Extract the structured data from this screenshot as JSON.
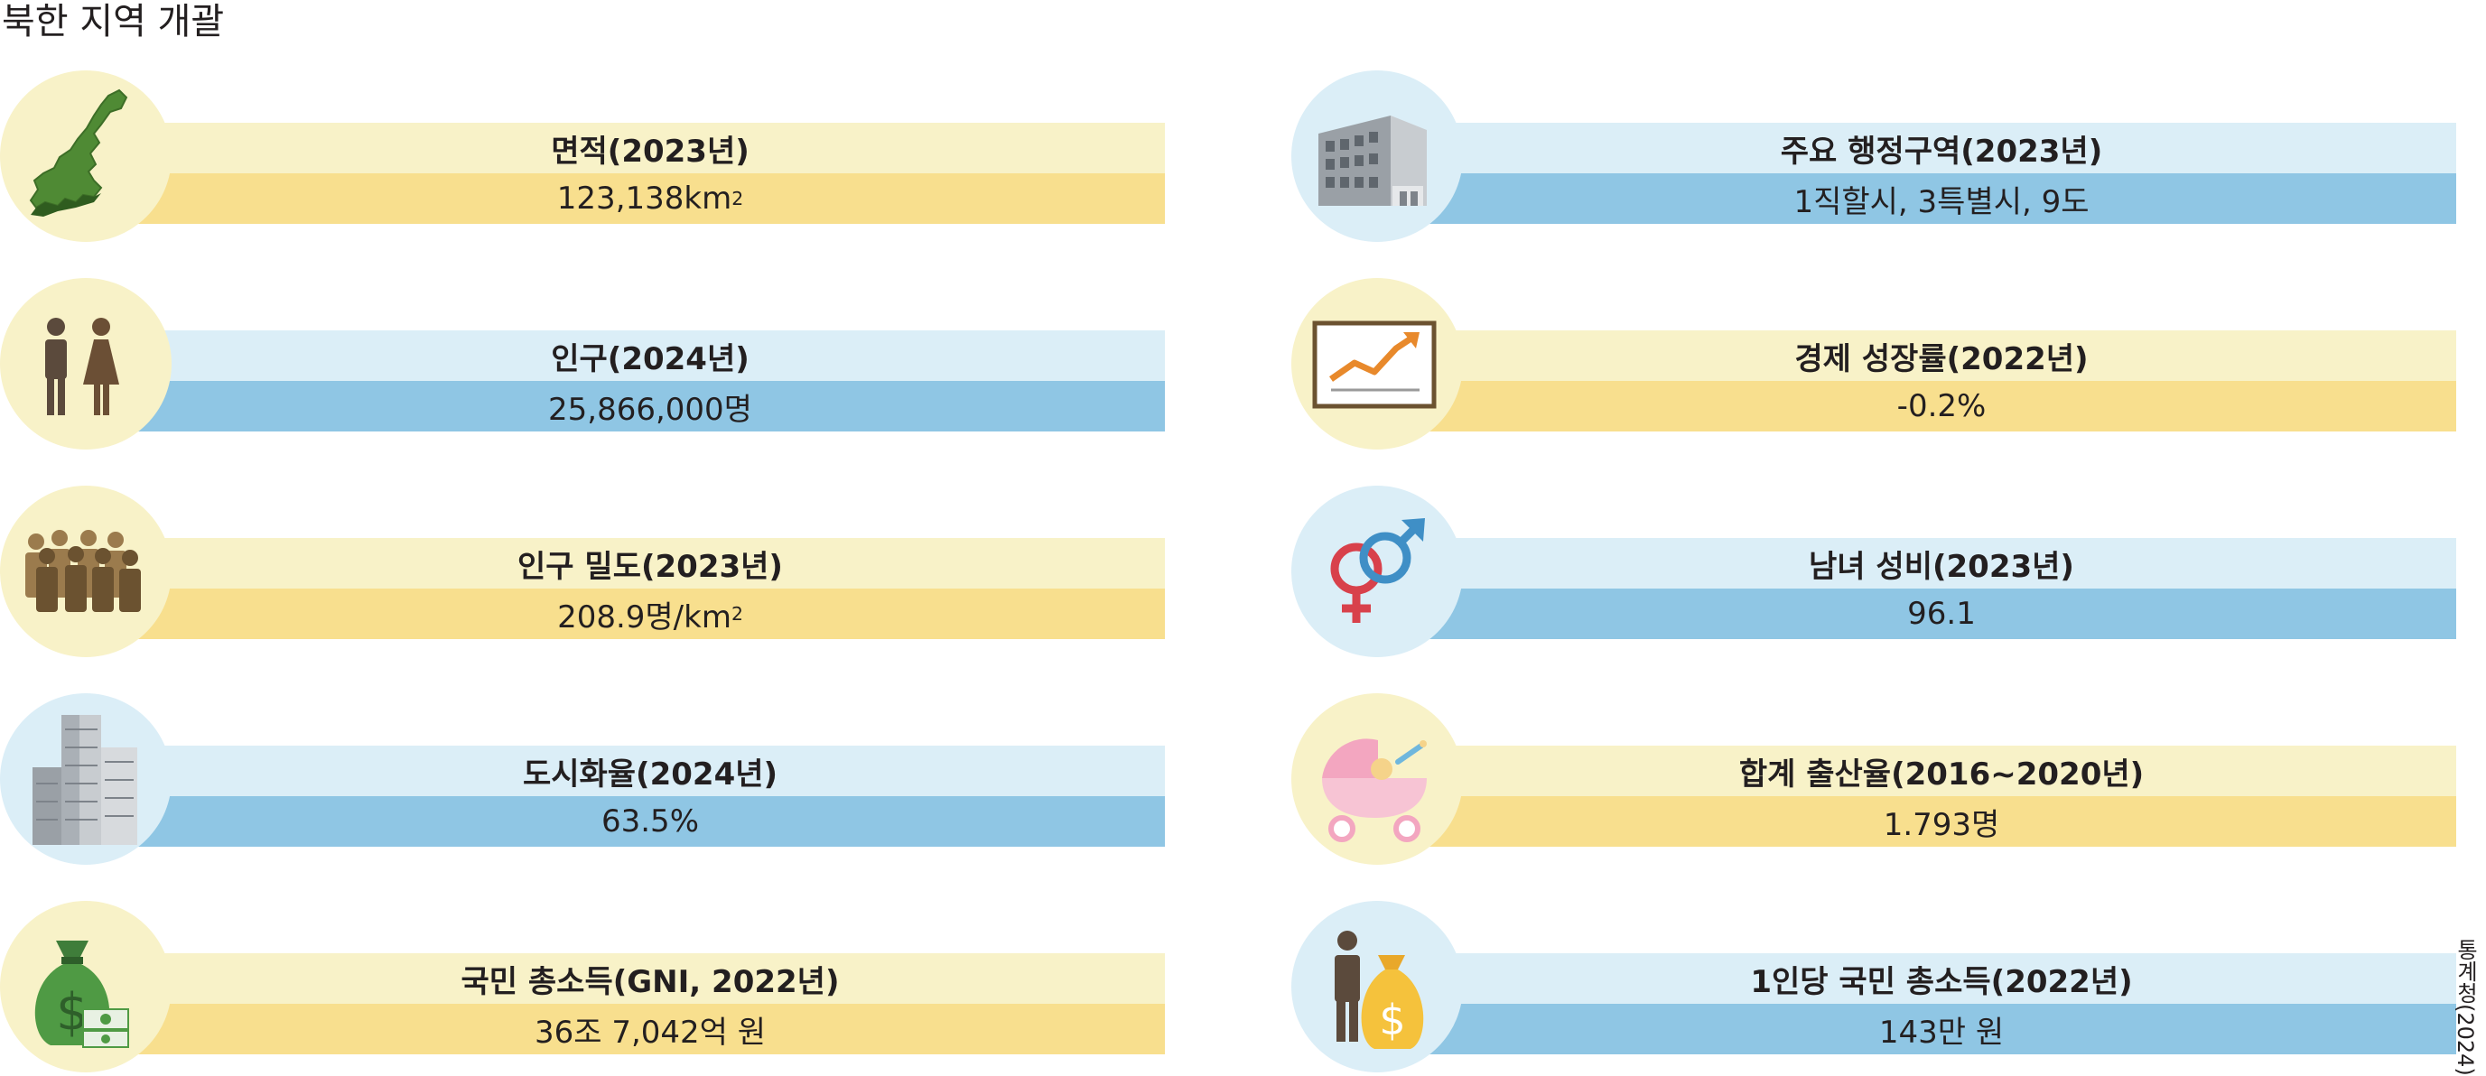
{
  "title": "북한 지역 개괄",
  "source": "통계청(2024)",
  "items": [
    {
      "label": "면적(2023년)",
      "value": "123,138",
      "unit": "km",
      "unit_sup": "2",
      "icon": "north-korea-map-icon"
    },
    {
      "label": "인구(2024년)",
      "value": "25,866,000명",
      "icon": "man-woman-icon"
    },
    {
      "label": "인구 밀도(2023년)",
      "value": "208.9명/km",
      "unit_sup": "2",
      "icon": "crowd-icon"
    },
    {
      "label": "도시화율(2024년)",
      "value": "63.5%",
      "icon": "skyscrapers-icon"
    },
    {
      "label": "국민 총소득(GNI, 2022년)",
      "value": "36조 7,042억 원",
      "icon": "money-bag-icon"
    },
    {
      "label": "주요 행정구역(2023년)",
      "value": "1직할시, 3특별시, 9도",
      "icon": "government-building-icon"
    },
    {
      "label": "경제 성장률(2022년)",
      "value": "-0.2%",
      "icon": "growth-chart-icon"
    },
    {
      "label": "남녀 성비(2023년)",
      "value": "96.1",
      "icon": "gender-symbols-icon"
    },
    {
      "label": "합계 출산율(2016~2020년)",
      "value": "1.793명",
      "icon": "baby-stroller-icon"
    },
    {
      "label": "1인당 국민 총소득(2022년)",
      "value": "143만 원",
      "icon": "person-money-bag-icon"
    }
  ],
  "colors": {
    "yellow_light": "#f8f2c8",
    "yellow": "#f8df8e",
    "blue_light": "#dbeef7",
    "blue": "#8fc6e4"
  }
}
